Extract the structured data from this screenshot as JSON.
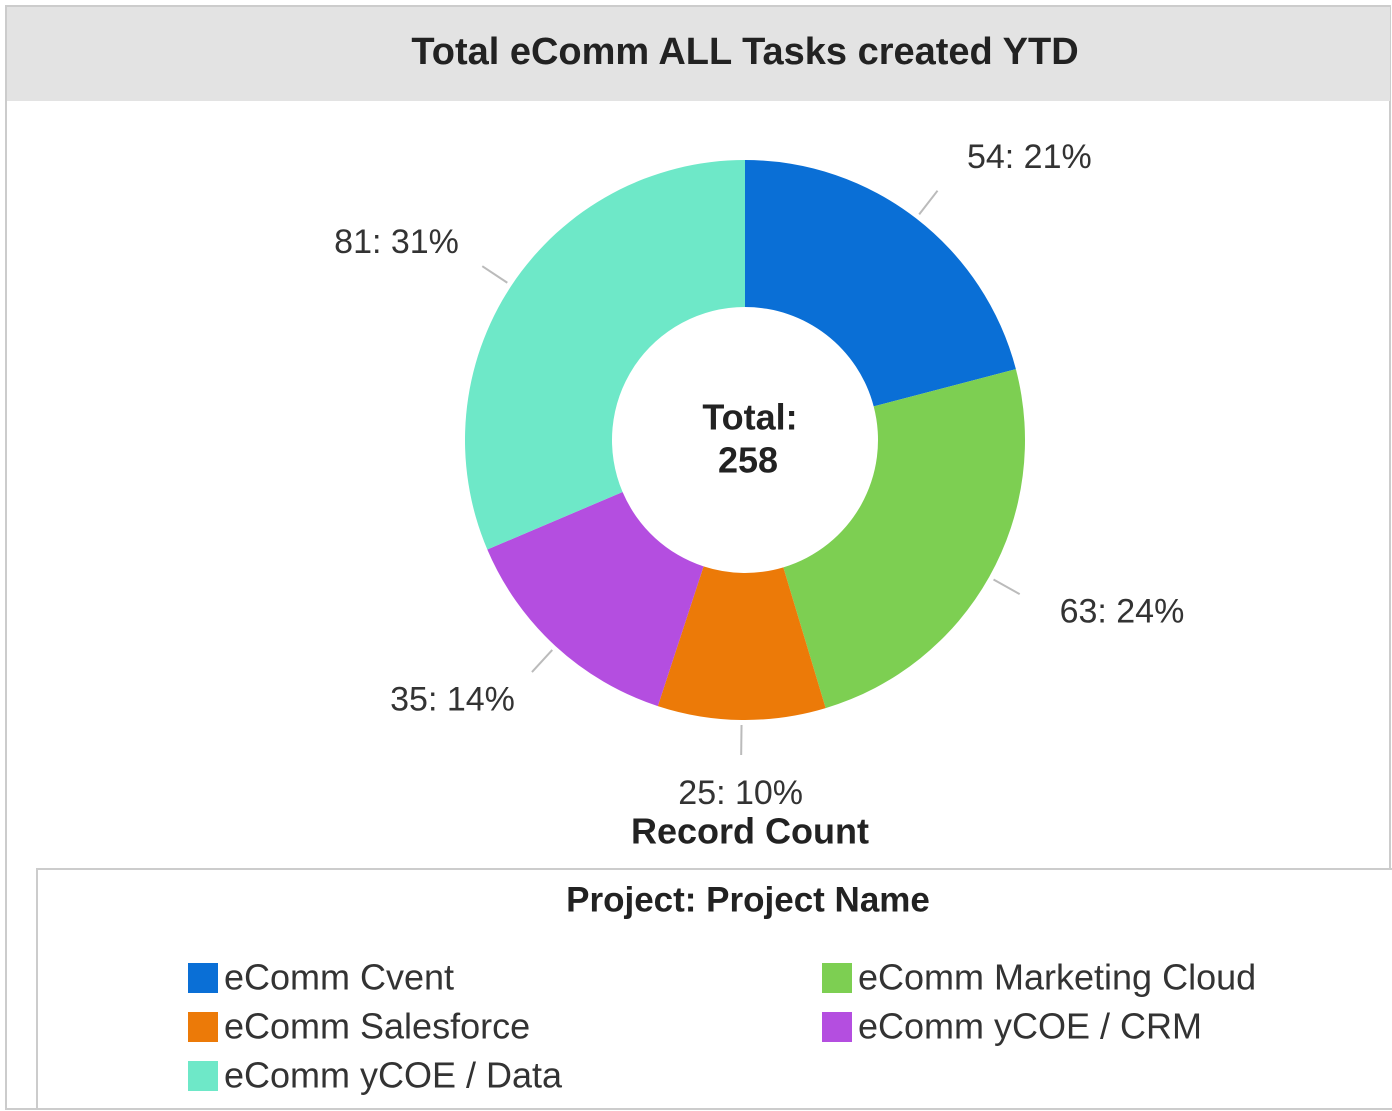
{
  "chart_data": {
    "type": "donut",
    "title": "Total eComm ALL Tasks created YTD",
    "center_label": "Total:",
    "total": 258,
    "axis_label": "Record Count",
    "legend_title": "Project: Project Name",
    "categories": [
      "eComm Cvent",
      "eComm Marketing Cloud",
      "eComm Salesforce",
      "eComm yCOE / CRM",
      "eComm yCOE / Data"
    ],
    "values": [
      54,
      63,
      25,
      35,
      81
    ],
    "value_labels": [
      "54: 21%",
      "63: 24%",
      "25: 10%",
      "35: 14%",
      "81: 31%"
    ],
    "colors": [
      "#0a6fd6",
      "#7dcf52",
      "#ec7a08",
      "#b44ee0",
      "#6ee8c8"
    ]
  }
}
